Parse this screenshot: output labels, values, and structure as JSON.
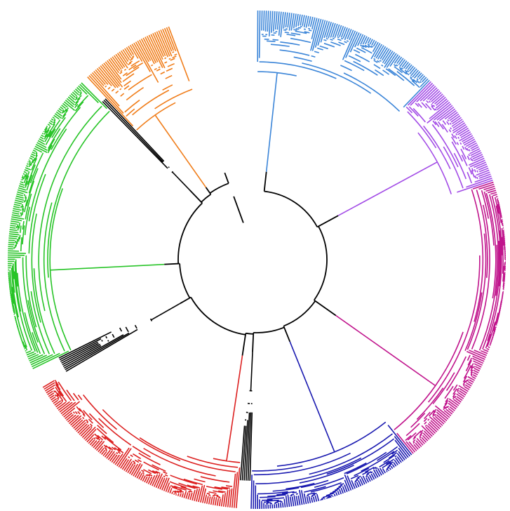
{
  "tree": {
    "layout": "circular",
    "background_color": "#ffffff",
    "backbone_color": "#000000",
    "clades": [
      {
        "color": "#3b85d8",
        "tips": 90,
        "depth": 0.62
      },
      {
        "color": "#a24be6",
        "tips": 56,
        "depth": 0.72
      },
      {
        "color": "#c0148c",
        "tips": 142,
        "depth": 0.8
      },
      {
        "color": "#1a1ab0",
        "tips": 82,
        "depth": 0.74
      },
      {
        "color": "#000000",
        "tips": 6,
        "depth": 0.3
      },
      {
        "color": "#dc2020",
        "tips": 112,
        "depth": 0.7
      },
      {
        "color": "#000000",
        "tips": 9,
        "depth": 0.25
      },
      {
        "color": "#27c427",
        "tips": 146,
        "depth": 0.73
      },
      {
        "color": "#000000",
        "tips": 3,
        "depth": 0.2
      },
      {
        "color": "#f07d1a",
        "tips": 46,
        "depth": 0.55
      },
      {
        "color": "#000000",
        "tips": 1,
        "depth": 0.0
      }
    ]
  }
}
